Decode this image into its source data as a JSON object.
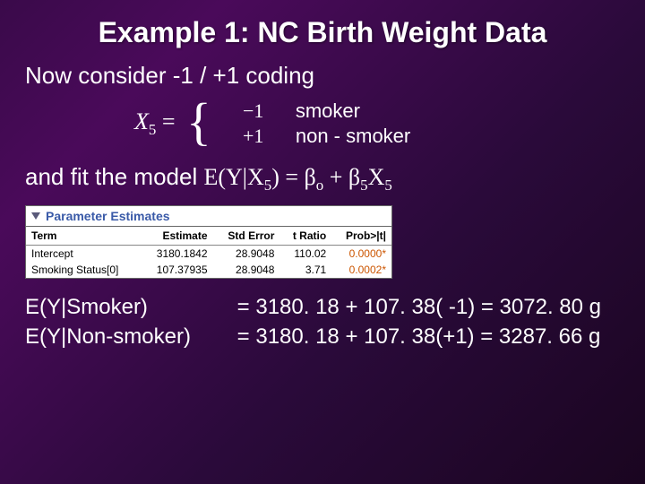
{
  "title": "Example 1:  NC Birth Weight Data",
  "intro1": "Now consider -1 / +1 coding",
  "coding": {
    "lhs_var": "X",
    "lhs_sub": "5",
    "row1_val": "−1",
    "row1_lbl": "smoker",
    "row2_val": "+1",
    "row2_lbl": "non - smoker"
  },
  "intro2_prefix": "and fit the model ",
  "model": {
    "text": "E(Y|X",
    "sub1": "5",
    "mid": ") = β",
    "subo": "o",
    "plus": " + β",
    "sub5a": "5",
    "x": "X",
    "sub5b": "5"
  },
  "panel": {
    "title": "Parameter Estimates",
    "cols": {
      "c1": "Term",
      "c2": "Estimate",
      "c3": "Std Error",
      "c4": "t Ratio",
      "c5": "Prob>|t|"
    },
    "rows": [
      {
        "term": "Intercept",
        "est": "3180.1842",
        "se": "28.9048",
        "t": "110.02",
        "p": "0.0000*"
      },
      {
        "term": "Smoking Status[0]",
        "est": "107.37935",
        "se": "28.9048",
        "t": "3.71",
        "p": "0.0002*"
      }
    ]
  },
  "calc": {
    "l1_lhs": "E(Y|Smoker)",
    "l1_rhs": "= 3180. 18 + 107. 38( -1) = 3072. 80 g",
    "l2_lhs": "E(Y|Non-smoker)",
    "l2_rhs": "= 3180. 18 + 107. 38(+1) = 3287. 66 g"
  }
}
